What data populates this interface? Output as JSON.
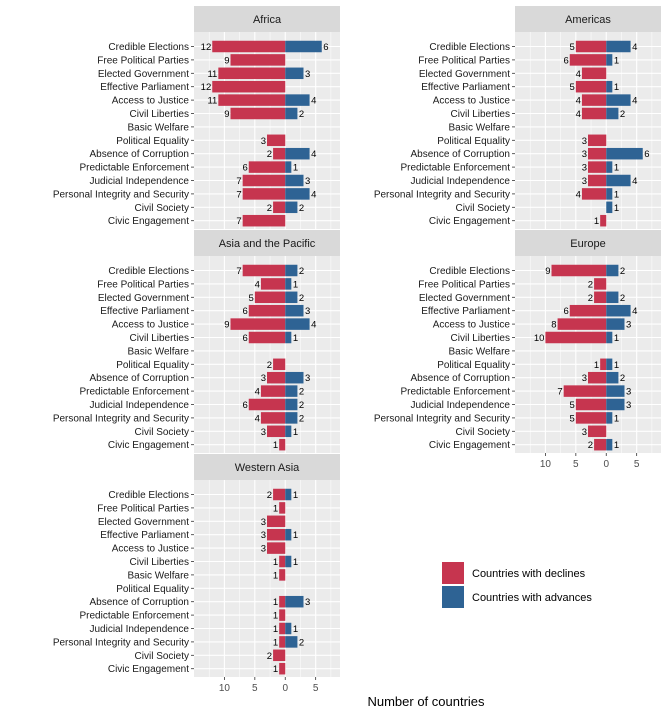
{
  "chart_data": {
    "type": "bar",
    "orientation": "horizontal",
    "xlabel": "Number of countries",
    "ylabel": "",
    "xlim": [
      -15,
      9
    ],
    "xticks": [
      -10,
      -5,
      0,
      5
    ],
    "xtick_labels": [
      "10",
      "5",
      "0",
      "5"
    ],
    "grid": true,
    "legend_position": "bottom-right",
    "colors": {
      "declines": "#c6354f",
      "advances": "#2e6394",
      "panel_bg": "#ebebeb",
      "strip_bg": "#d9d9d9",
      "grid": "#ffffff"
    },
    "legend": [
      {
        "key": "declines",
        "label": "Countries with declines"
      },
      {
        "key": "advances",
        "label": "Countries with advances"
      }
    ],
    "categories": [
      "Credible Elections",
      "Free Political Parties",
      "Elected Government",
      "Effective Parliament",
      "Access to Justice",
      "Civil Liberties",
      "Basic Welfare",
      "Political Equality",
      "Absence of Corruption",
      "Predictable Enforcement",
      "Judicial Independence",
      "Personal Integrity and Security",
      "Civil Society",
      "Civic Engagement"
    ],
    "panels": [
      {
        "region": "Africa",
        "declines": [
          12,
          9,
          11,
          12,
          11,
          9,
          null,
          3,
          2,
          6,
          7,
          7,
          2,
          7
        ],
        "advances": [
          6,
          null,
          3,
          null,
          4,
          2,
          null,
          null,
          4,
          1,
          3,
          4,
          2,
          null
        ]
      },
      {
        "region": "Americas",
        "declines": [
          5,
          6,
          4,
          5,
          4,
          4,
          null,
          3,
          3,
          3,
          3,
          4,
          null,
          1
        ],
        "advances": [
          4,
          1,
          null,
          1,
          4,
          2,
          null,
          null,
          6,
          1,
          4,
          1,
          1,
          null
        ]
      },
      {
        "region": "Asia and the Pacific",
        "declines": [
          7,
          4,
          5,
          6,
          9,
          6,
          null,
          2,
          3,
          4,
          6,
          4,
          3,
          1
        ],
        "advances": [
          2,
          1,
          2,
          3,
          4,
          1,
          null,
          null,
          3,
          2,
          2,
          2,
          1,
          null
        ]
      },
      {
        "region": "Europe",
        "declines": [
          9,
          2,
          2,
          6,
          8,
          10,
          null,
          1,
          3,
          7,
          5,
          5,
          3,
          2
        ],
        "advances": [
          2,
          null,
          2,
          4,
          3,
          1,
          null,
          1,
          2,
          3,
          3,
          1,
          null,
          1
        ]
      },
      {
        "region": "Western Asia",
        "declines": [
          2,
          1,
          3,
          3,
          3,
          1,
          1,
          null,
          1,
          1,
          1,
          1,
          2,
          1
        ],
        "advances": [
          1,
          null,
          null,
          1,
          null,
          1,
          null,
          null,
          3,
          null,
          1,
          2,
          null,
          null
        ]
      }
    ]
  }
}
